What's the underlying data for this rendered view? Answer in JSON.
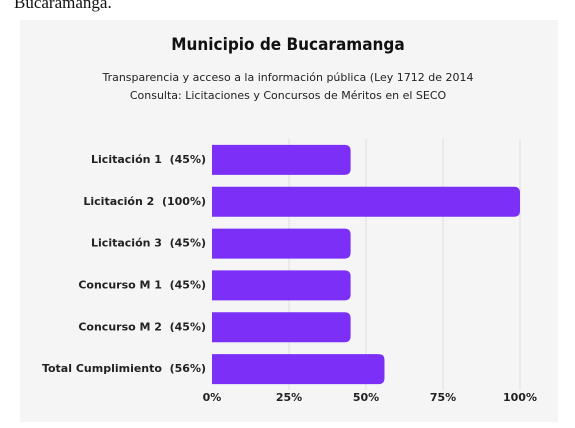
{
  "top_fragment": "Bucaramanga.",
  "chart_data": {
    "type": "bar",
    "orientation": "horizontal",
    "title": "Municipio de Bucaramanga",
    "subtitle": [
      "Transparencia y acceso a la información pública (Ley 1712 de 2014",
      "Consulta: Licitaciones y Concursos de Méritos en el SECO"
    ],
    "categories": [
      "Licitación 1  (45%)",
      "Licitación 2  (100%)",
      "Licitación 3  (45%)",
      "Concurso M 1  (45%)",
      "Concurso M 2  (45%)",
      "Total Cumplimiento  (56%)"
    ],
    "values": [
      45,
      100,
      45,
      45,
      45,
      56
    ],
    "color": "#7b2ff7",
    "xlim": [
      0,
      100
    ],
    "xticks": [
      {
        "value": 0,
        "label": "0%"
      },
      {
        "value": 25,
        "label": "25%"
      },
      {
        "value": 50,
        "label": "50%"
      },
      {
        "value": 75,
        "label": "75%"
      },
      {
        "value": 100,
        "label": "100%"
      }
    ],
    "grid": true
  }
}
